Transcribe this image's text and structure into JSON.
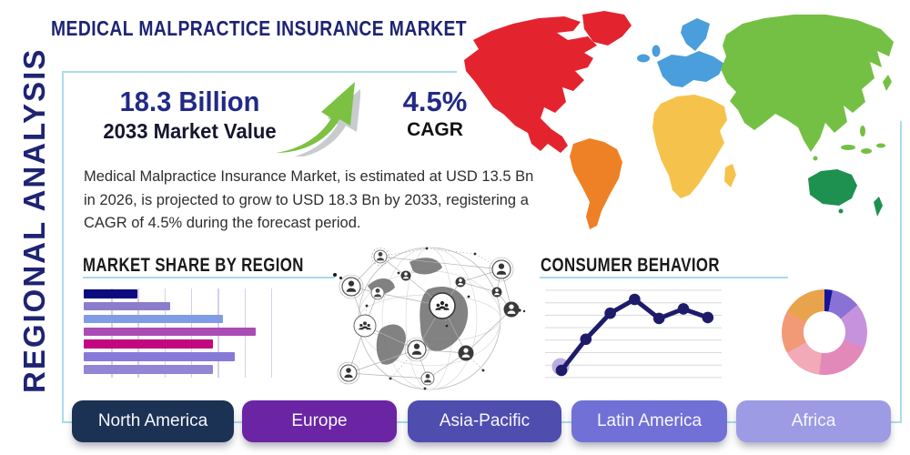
{
  "page": {
    "title": "MEDICAL MALPRACTICE INSURANCE MARKET",
    "side_label": "REGIONAL ANALYSIS"
  },
  "stats": {
    "market_value": "18.3 Billion",
    "market_value_label": "2033 Market Value",
    "cagr_value": "4.5%",
    "cagr_label": "CAGR"
  },
  "description": "Medical Malpractice Insurance Market, is estimated at USD 13.5 Bn in 2026, is projected to grow to USD 18.3 Bn by 2033, registering a CAGR of 4.5% during the forecast period.",
  "sections": {
    "market_share_title": "MARKET SHARE BY REGION",
    "consumer_behavior_title": "CONSUMER BEHAVIOR"
  },
  "region_buttons": [
    {
      "label": "North America",
      "color": "#1c3254"
    },
    {
      "label": "Europe",
      "color": "#6a24a4"
    },
    {
      "label": "Asia-Pacific",
      "color": "#4f4dae"
    },
    {
      "label": "Latin America",
      "color": "#7170d6"
    },
    {
      "label": "Africa",
      "color": "#9d9be4"
    }
  ],
  "colors": {
    "accent_navy": "#222a85",
    "title_navy": "#1e2472",
    "card_border": "#abdbec",
    "underline": "#a9d9ec",
    "arrow_green": "#7cc142",
    "body_text": "#2e2e2e"
  },
  "map_regions": [
    {
      "region": "North America",
      "color": "#e3242f"
    },
    {
      "region": "South America",
      "color": "#ee8125"
    },
    {
      "region": "Europe",
      "color": "#4a9edb"
    },
    {
      "region": "Africa",
      "color": "#f5c34c"
    },
    {
      "region": "Asia",
      "color": "#74c044"
    },
    {
      "region": "Oceania",
      "color": "#1e9150"
    }
  ],
  "chart_data": [
    {
      "type": "bar",
      "title": "MARKET SHARE BY REGION",
      "orientation": "horizontal",
      "categories": [
        "",
        "",
        "",
        "",
        "",
        "",
        ""
      ],
      "values": [
        31,
        50,
        81,
        100,
        75,
        88,
        75
      ],
      "value_scale": "relative, 100 = longest bar (no numeric axis labels shown)",
      "colors": [
        "#0b0b80",
        "#8d7ccc",
        "#7f9ce4",
        "#aa4cb5",
        "#c2077f",
        "#8679d8",
        "#9484d4"
      ],
      "grid": "vertical",
      "xlabel": "",
      "ylabel": ""
    },
    {
      "type": "line",
      "title": "CONSUMER BEHAVIOR",
      "x": [
        1,
        2,
        3,
        4,
        5,
        6,
        7
      ],
      "values": [
        8,
        44,
        74,
        90,
        68,
        79,
        69
      ],
      "value_scale": "relative 0-100 (no numeric axis labels shown)",
      "color": "#1e1b6b",
      "first_point_halo": "#b2a0dd",
      "grid": "horizontal",
      "xlabel": "",
      "ylabel": ""
    },
    {
      "type": "pie",
      "subtype": "donut",
      "title": "",
      "slices": [
        {
          "value": 3,
          "color": "#15159b"
        },
        {
          "value": 11,
          "color": "#8a71d4"
        },
        {
          "value": 17,
          "color": "#c792dd"
        },
        {
          "value": 21,
          "color": "#e389ba"
        },
        {
          "value": 15,
          "color": "#f2a9b8"
        },
        {
          "value": 16,
          "color": "#f29a76"
        },
        {
          "value": 17,
          "color": "#e9a34c"
        }
      ],
      "value_scale": "percent (estimated, no labels shown)"
    }
  ]
}
